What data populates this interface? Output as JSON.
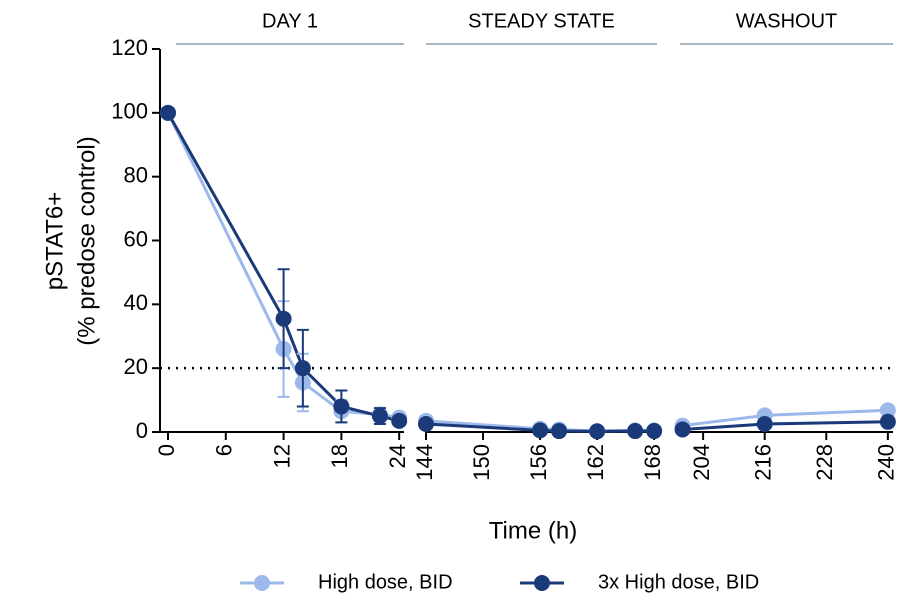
{
  "chart_data": {
    "type": "line",
    "y_label": [
      "pSTAT6+",
      "(% predose control)"
    ],
    "x_label": "Time (h)",
    "ylim": [
      0,
      120
    ],
    "yticks": [
      0,
      20,
      40,
      60,
      80,
      100,
      120
    ],
    "reference_line": 20,
    "panels": [
      {
        "title": "DAY 1",
        "xlim": [
          0,
          24.5
        ],
        "xticks": [
          0,
          6,
          12,
          18,
          24
        ]
      },
      {
        "title": "STEADY STATE",
        "xlim": [
          144,
          168.3
        ],
        "xticks": [
          144,
          150,
          156,
          162,
          168
        ]
      },
      {
        "title": "WASHOUT",
        "xlim": [
          199.5,
          241
        ],
        "xticks": [
          204,
          216,
          228,
          240
        ]
      }
    ],
    "series": [
      {
        "name": "High dose, BID",
        "color": "#9db8ea",
        "panels": [
          {
            "x": [
              0,
              12,
              14,
              18,
              22,
              24
            ],
            "values": [
              100,
              26,
              15.5,
              6.5,
              5.5,
              4.5
            ],
            "errors": [
              0,
              15,
              9,
              3.5,
              2,
              0
            ]
          },
          {
            "x": [
              144,
              156,
              158,
              162,
              166,
              168
            ],
            "values": [
              3.5,
              1,
              0.8,
              0.3,
              0.5,
              0.5
            ],
            "errors": [
              0,
              0,
              0,
              0,
              0,
              0
            ]
          },
          {
            "x": [
              200,
              216,
              240
            ],
            "values": [
              2,
              5.2,
              6.8
            ],
            "errors": [
              0,
              0,
              0
            ]
          }
        ]
      },
      {
        "name": "3x High dose, BID",
        "color": "#1b3a7a",
        "panels": [
          {
            "x": [
              0,
              12,
              14,
              18,
              22,
              24
            ],
            "values": [
              100,
              35.5,
              20,
              8,
              5,
              3.5
            ],
            "errors": [
              0,
              15.5,
              12,
              5,
              2.5,
              0
            ]
          },
          {
            "x": [
              144,
              156,
              158,
              162,
              166,
              168
            ],
            "values": [
              2.5,
              0.5,
              0.3,
              0.2,
              0.3,
              0.3
            ],
            "errors": [
              0,
              0,
              0,
              0,
              0,
              0
            ]
          },
          {
            "x": [
              200,
              216,
              240
            ],
            "values": [
              0.8,
              2.5,
              3.2
            ],
            "errors": [
              0,
              0,
              0
            ]
          }
        ]
      }
    ]
  }
}
